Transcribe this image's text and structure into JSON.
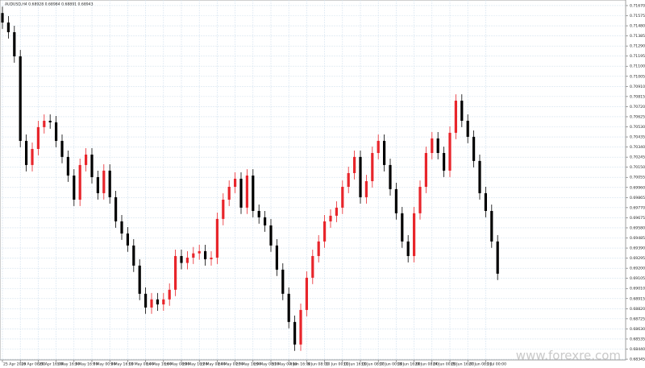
{
  "chart_data": {
    "type": "candlestick",
    "title": "AUDUSD,H4 0.68928 0.68984 0.68891 0.68943",
    "watermark": "www.forexre.com",
    "bull_color": "#e8252b",
    "bear_color": "#000000",
    "grid": true,
    "ylim": [
      0.683,
      0.717
    ],
    "yticks": [
      {
        "value": 0.68345,
        "label": "0.68345"
      },
      {
        "value": 0.6844,
        "label": "0.68440"
      },
      {
        "value": 0.68535,
        "label": "0.68535"
      },
      {
        "value": 0.6863,
        "label": "0.68630"
      },
      {
        "value": 0.68725,
        "label": "0.68725"
      },
      {
        "value": 0.6882,
        "label": "0.68820"
      },
      {
        "value": 0.68915,
        "label": "0.68915"
      },
      {
        "value": 0.6901,
        "label": "0.69010"
      },
      {
        "value": 0.69105,
        "label": "0.69105"
      },
      {
        "value": 0.692,
        "label": "0.69200"
      },
      {
        "value": 0.69295,
        "label": "0.69295"
      },
      {
        "value": 0.6939,
        "label": "0.69390"
      },
      {
        "value": 0.69485,
        "label": "0.69485"
      },
      {
        "value": 0.6958,
        "label": "0.69580"
      },
      {
        "value": 0.69675,
        "label": "0.69675"
      },
      {
        "value": 0.6977,
        "label": "0.69770"
      },
      {
        "value": 0.69865,
        "label": "0.69865"
      },
      {
        "value": 0.6996,
        "label": "0.69960"
      },
      {
        "value": 0.70055,
        "label": "0.70055"
      },
      {
        "value": 0.7015,
        "label": "0.70150"
      },
      {
        "value": 0.70245,
        "label": "0.70245"
      },
      {
        "value": 0.7034,
        "label": "0.70340"
      },
      {
        "value": 0.70435,
        "label": "0.70435"
      },
      {
        "value": 0.7053,
        "label": "0.70530"
      },
      {
        "value": 0.70625,
        "label": "0.70625"
      },
      {
        "value": 0.7072,
        "label": "0.70720"
      },
      {
        "value": 0.70815,
        "label": "0.70815"
      },
      {
        "value": 0.7091,
        "label": "0.70910"
      },
      {
        "value": 0.71005,
        "label": "0.71005"
      },
      {
        "value": 0.711,
        "label": "0.71100"
      },
      {
        "value": 0.71195,
        "label": "0.71195"
      },
      {
        "value": 0.7129,
        "label": "0.71290"
      },
      {
        "value": 0.71385,
        "label": "0.71385"
      },
      {
        "value": 0.7148,
        "label": "0.71480"
      },
      {
        "value": 0.71575,
        "label": "0.71575"
      },
      {
        "value": 0.7167,
        "label": "0.71670"
      }
    ],
    "xticks": [
      {
        "value": 0,
        "label": "25 Apr 2019"
      },
      {
        "value": 3,
        "label": "26 Apr 08:00"
      },
      {
        "value": 6,
        "label": "29 Apr 16:00"
      },
      {
        "value": 9,
        "label": "1 May 16:00"
      },
      {
        "value": 12,
        "label": "3 May 16:00"
      },
      {
        "value": 15,
        "label": "7 May 00:00"
      },
      {
        "value": 18,
        "label": "9 May 16:00"
      },
      {
        "value": 21,
        "label": "13 May 08:00"
      },
      {
        "value": 24,
        "label": "14 May 16:00"
      },
      {
        "value": 27,
        "label": "16 May 08:00"
      },
      {
        "value": 30,
        "label": "20 May 16:00"
      },
      {
        "value": 33,
        "label": "22 May 08:00"
      },
      {
        "value": 36,
        "label": "24 May 00:00"
      },
      {
        "value": 39,
        "label": "27 May 16:00"
      },
      {
        "value": 42,
        "label": "29 May 08:00"
      },
      {
        "value": 45,
        "label": "31 May 00:00"
      },
      {
        "value": 48,
        "label": "4 Jun 16:00"
      },
      {
        "value": 51,
        "label": "6 Jun 08:00"
      },
      {
        "value": 54,
        "label": "10 Jun 00:00"
      },
      {
        "value": 57,
        "label": "11 Jun 16:00"
      },
      {
        "value": 60,
        "label": "13 Jun 08:00"
      },
      {
        "value": 63,
        "label": "17 Jun 00:00"
      },
      {
        "value": 66,
        "label": "18 Jun 16:00"
      },
      {
        "value": 69,
        "label": "20 Jun 08:00"
      },
      {
        "value": 72,
        "label": "24 Jun 00:00"
      },
      {
        "value": 75,
        "label": "25 Jun 16:00"
      },
      {
        "value": 78,
        "label": "27 Jun 08:00"
      },
      {
        "value": 81,
        "label": "1 Jul 00:00"
      }
    ],
    "open": [
      0.716,
      0.71511,
      0.7142,
      0.71193,
      0.70398,
      0.70171,
      0.70322,
      0.70527,
      0.70587,
      0.70572,
      0.70398,
      0.70247,
      0.70072,
      0.69845,
      0.70171,
      0.70269,
      0.70057,
      0.69906,
      0.70118,
      0.69868,
      0.69641,
      0.69527,
      0.69414,
      0.69225,
      0.6896,
      0.68831,
      0.68907,
      0.6886,
      0.68907,
      0.68998,
      0.69315,
      0.6925,
      0.693,
      0.6934,
      0.69361,
      0.69285,
      0.693,
      0.69664,
      0.69845,
      0.69966,
      0.70042,
      0.6977,
      0.70072,
      0.69739,
      0.69679,
      0.69603,
      0.69414,
      0.69187,
      0.6896,
      0.68695,
      0.68483,
      0.68808,
      0.69111,
      0.69315,
      0.69452,
      0.69641,
      0.69694,
      0.6977,
      0.69966,
      0.70095,
      0.70247,
      0.69868,
      0.70019,
      0.70284,
      0.70398,
      0.70171,
      0.69944,
      0.69717,
      0.69452,
      0.69315,
      0.69717,
      0.69966,
      0.70284,
      0.70421,
      0.70284,
      0.70118,
      0.70474,
      0.70776,
      0.70587,
      0.70436,
      0.70209,
      0.69906,
      0.69739,
      0.69452
    ],
    "high": [
      0.7166,
      0.71571,
      0.7148,
      0.71253,
      0.70458,
      0.70382,
      0.70587,
      0.70647,
      0.70647,
      0.70632,
      0.70458,
      0.70307,
      0.70132,
      0.70231,
      0.70329,
      0.70329,
      0.70117,
      0.70178,
      0.70178,
      0.69928,
      0.69701,
      0.69587,
      0.69474,
      0.69285,
      0.6902,
      0.68967,
      0.68967,
      0.68967,
      0.69058,
      0.69375,
      0.69375,
      0.6936,
      0.694,
      0.69421,
      0.69421,
      0.6936,
      0.69724,
      0.69905,
      0.70026,
      0.70102,
      0.70102,
      0.70132,
      0.70132,
      0.69799,
      0.69739,
      0.69663,
      0.69474,
      0.69247,
      0.6902,
      0.68755,
      0.68868,
      0.69171,
      0.69375,
      0.69512,
      0.69701,
      0.69754,
      0.6983,
      0.70026,
      0.70155,
      0.70307,
      0.70307,
      0.70079,
      0.70344,
      0.70458,
      0.70458,
      0.70231,
      0.70004,
      0.69777,
      0.69512,
      0.69777,
      0.70026,
      0.70344,
      0.70481,
      0.70481,
      0.70344,
      0.70534,
      0.70836,
      0.70836,
      0.70647,
      0.70496,
      0.70269,
      0.69966,
      0.69799,
      0.69512
    ],
    "low": [
      0.71451,
      0.7136,
      0.71133,
      0.70338,
      0.70111,
      0.70111,
      0.70262,
      0.70467,
      0.70512,
      0.70338,
      0.70187,
      0.70012,
      0.69785,
      0.69785,
      0.70111,
      0.69997,
      0.69846,
      0.69846,
      0.69808,
      0.69581,
      0.69467,
      0.69354,
      0.69165,
      0.689,
      0.68771,
      0.68771,
      0.688,
      0.688,
      0.68847,
      0.68938,
      0.6919,
      0.6919,
      0.6924,
      0.6928,
      0.69225,
      0.69225,
      0.6924,
      0.69604,
      0.69785,
      0.69906,
      0.6971,
      0.6971,
      0.69679,
      0.69619,
      0.69543,
      0.69354,
      0.69127,
      0.689,
      0.68635,
      0.68423,
      0.68423,
      0.68748,
      0.69051,
      0.69255,
      0.69392,
      0.69581,
      0.69634,
      0.6971,
      0.69906,
      0.70035,
      0.69808,
      0.69808,
      0.69959,
      0.70224,
      0.70111,
      0.69884,
      0.69657,
      0.69392,
      0.69255,
      0.69255,
      0.69657,
      0.69906,
      0.70224,
      0.70224,
      0.70058,
      0.70058,
      0.70414,
      0.70527,
      0.70376,
      0.70149,
      0.69846,
      0.69679,
      0.69392,
      0.69089
    ],
    "close": [
      0.71511,
      0.7142,
      0.71193,
      0.70398,
      0.70171,
      0.70322,
      0.70527,
      0.70587,
      0.70572,
      0.70398,
      0.70247,
      0.70072,
      0.69845,
      0.70171,
      0.70269,
      0.70057,
      0.69906,
      0.70118,
      0.69868,
      0.69641,
      0.69527,
      0.69414,
      0.69225,
      0.6896,
      0.68831,
      0.68907,
      0.6886,
      0.68907,
      0.68998,
      0.69315,
      0.6925,
      0.693,
      0.6934,
      0.69361,
      0.69285,
      0.693,
      0.69664,
      0.69845,
      0.69966,
      0.70042,
      0.6977,
      0.70072,
      0.69739,
      0.69679,
      0.69603,
      0.69414,
      0.69187,
      0.6896,
      0.68695,
      0.68483,
      0.68808,
      0.69111,
      0.69315,
      0.69452,
      0.69641,
      0.69694,
      0.6977,
      0.69966,
      0.70095,
      0.70247,
      0.69868,
      0.70019,
      0.70284,
      0.70398,
      0.70171,
      0.69944,
      0.69717,
      0.69452,
      0.69315,
      0.69717,
      0.69966,
      0.70284,
      0.70421,
      0.70284,
      0.70118,
      0.70474,
      0.70776,
      0.70587,
      0.70436,
      0.70209,
      0.69906,
      0.69739,
      0.69452,
      0.69149
    ]
  }
}
